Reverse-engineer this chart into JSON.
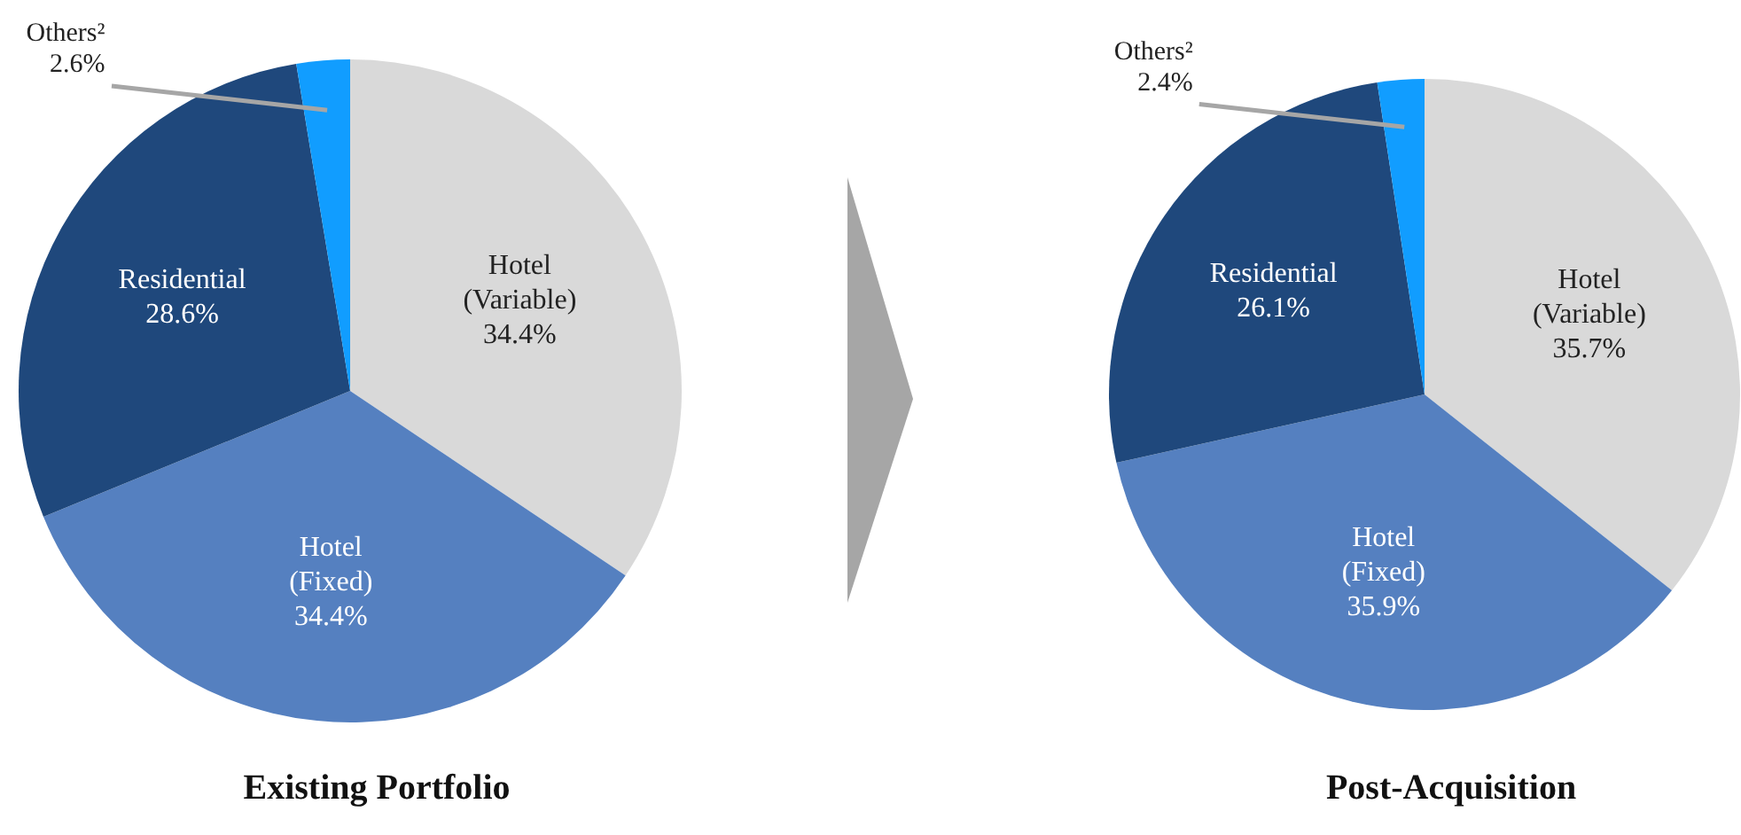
{
  "chart_data": [
    {
      "type": "pie",
      "title": "Existing Portfolio",
      "categories": [
        "Hotel (Variable)",
        "Hotel (Fixed)",
        "Residential",
        "Others²"
      ],
      "values": [
        34.4,
        34.4,
        28.6,
        2.6
      ],
      "value_labels": [
        "34.4%",
        "34.4%",
        "28.6%",
        "2.6%"
      ],
      "colors": [
        "#d9d9d9",
        "#5580c0",
        "#1f487c",
        "#119dff"
      ]
    },
    {
      "type": "pie",
      "title": "Post-Acquisition",
      "categories": [
        "Hotel (Variable)",
        "Hotel (Fixed)",
        "Residential",
        "Others²"
      ],
      "values": [
        35.7,
        35.9,
        26.1,
        2.4
      ],
      "value_labels": [
        "35.7%",
        "35.9%",
        "26.1%",
        "2.4%"
      ],
      "colors": [
        "#d9d9d9",
        "#5580c0",
        "#1f487c",
        "#119dff"
      ]
    }
  ]
}
